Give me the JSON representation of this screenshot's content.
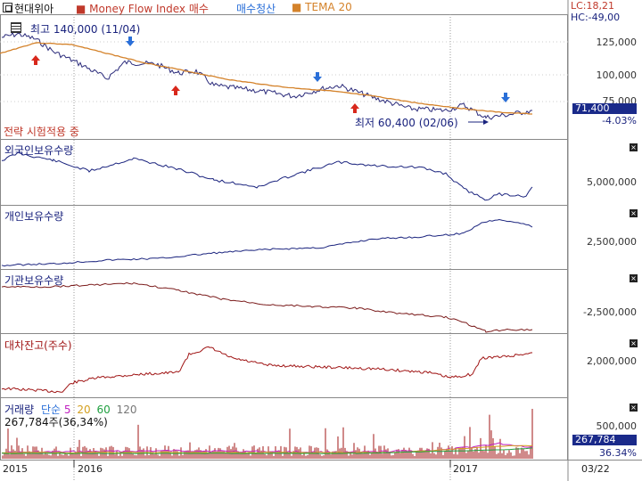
{
  "header": {
    "stock_name": "현대위아",
    "indicator_mfi": "Money Flow Index 매수",
    "indicator_exit": "매수청산",
    "indicator_tema": "TEMA 20",
    "lc": "LC:18,21",
    "hc": "HC:-49,00"
  },
  "price_panel": {
    "high_label": "최고 140,000 (11/04)",
    "low_label": "최저 60,400 (02/06)",
    "strategy_label": "전략 시험적용 중",
    "y_ticks": [
      "125,000",
      "100,000",
      "75,000"
    ],
    "last_price": "71,400",
    "change_pct": "-4.03%"
  },
  "panels": [
    {
      "title": "외국인보유수량",
      "tick": "5,000,000"
    },
    {
      "title": "개인보유수량",
      "tick": "2,500,000"
    },
    {
      "title": "기관보유수량",
      "tick": "-2,500,000"
    },
    {
      "title": "대차잔고(주수)",
      "tick": "2,000,000"
    }
  ],
  "volume_panel": {
    "title": "거래량",
    "ma_prefix": "단순",
    "ma_periods": [
      "5",
      "20",
      "60",
      "120"
    ],
    "summary": "267,784주(36,34%)",
    "tick": "500,000",
    "last_value": "267,784",
    "last_pct": "36.34%"
  },
  "x_axis": [
    "2015",
    "2016",
    "2017",
    "03/22"
  ],
  "colors": {
    "price_line": "#2a2a7a",
    "tema_line": "#d4822a",
    "foreign_line": "#1a237e",
    "individual_line": "#1a237e",
    "institution_line": "#7a1a1a",
    "lending_line": "#a01515",
    "buy_arrow": "#d8281c",
    "sell_arrow": "#2a6fd8",
    "value_box": "#1a2a8a"
  }
}
